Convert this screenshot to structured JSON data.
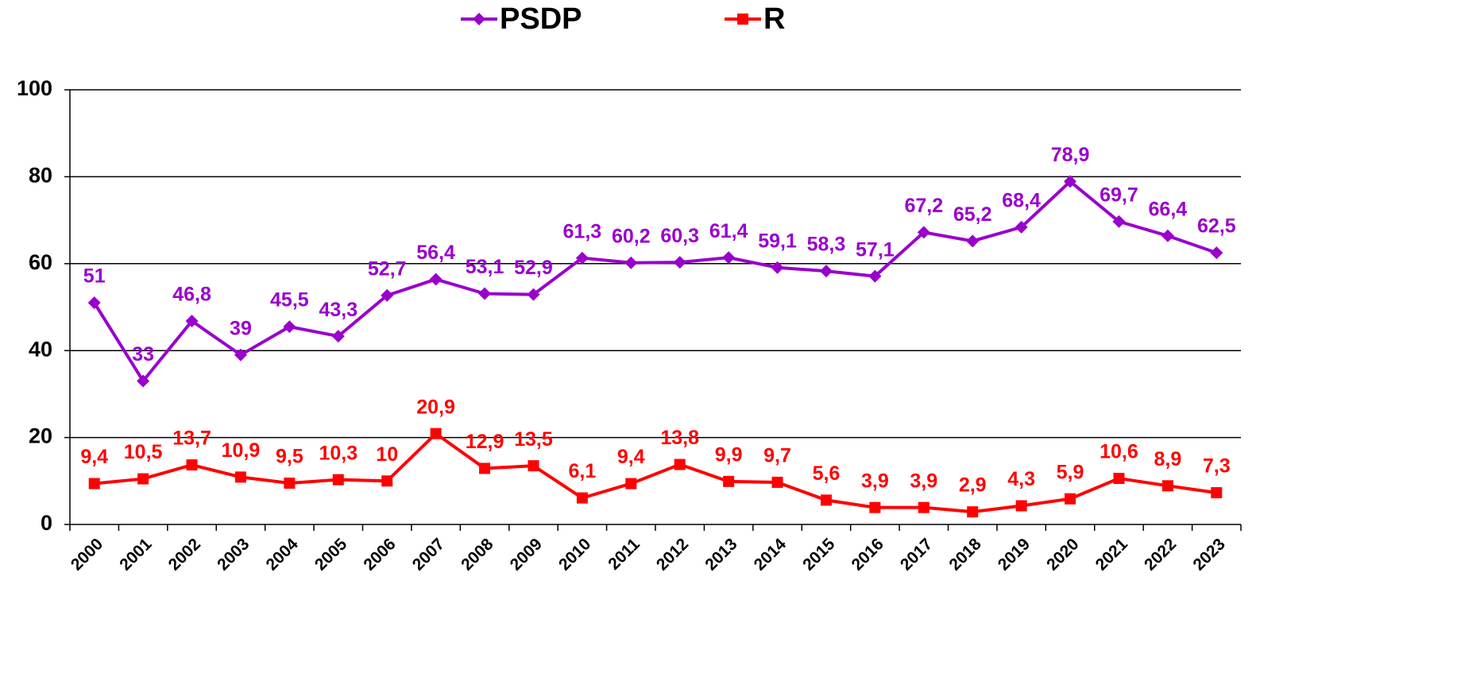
{
  "chart_data": {
    "type": "line",
    "categories": [
      "2000",
      "2001",
      "2002",
      "2003",
      "2004",
      "2005",
      "2006",
      "2007",
      "2008",
      "2009",
      "2010",
      "2011",
      "2012",
      "2013",
      "2014",
      "2015",
      "2016",
      "2017",
      "2018",
      "2019",
      "2020",
      "2021",
      "2022",
      "2023"
    ],
    "series": [
      {
        "name": "PSDP",
        "color": "#9900cc",
        "marker": "diamond",
        "values": [
          51,
          33,
          46.8,
          39,
          45.5,
          43.3,
          52.7,
          56.4,
          53.1,
          52.9,
          61.3,
          60.2,
          60.3,
          61.4,
          59.1,
          58.3,
          57.1,
          67.2,
          65.2,
          68.4,
          78.9,
          69.7,
          66.4,
          62.5
        ],
        "value_labels": [
          "51",
          "33",
          "46,8",
          "39",
          "45,5",
          "43,3",
          "52,7",
          "56,4",
          "53,1",
          "52,9",
          "61,3",
          "60,2",
          "60,3",
          "61,4",
          "59,1",
          "58,3",
          "57,1",
          "67,2",
          "65,2",
          "68,4",
          "78,9",
          "69,7",
          "66,4",
          "62,5"
        ]
      },
      {
        "name": "R",
        "color": "#ff0000",
        "marker": "square",
        "values": [
          9.4,
          10.5,
          13.7,
          10.9,
          9.5,
          10.3,
          10,
          20.9,
          12.9,
          13.5,
          6.1,
          9.4,
          13.8,
          9.9,
          9.7,
          5.6,
          3.9,
          3.9,
          2.9,
          4.3,
          5.9,
          10.6,
          8.9,
          7.3
        ],
        "value_labels": [
          "9,4",
          "10,5",
          "13,7",
          "10,9",
          "9,5",
          "10,3",
          "10",
          "20,9",
          "12,9",
          "13,5",
          "6,1",
          "9,4",
          "13,8",
          "9,9",
          "9,7",
          "5,6",
          "3,9",
          "3,9",
          "2,9",
          "4,3",
          "5,9",
          "10,6",
          "8,9",
          "7,3"
        ]
      }
    ],
    "ylim": [
      0,
      100
    ],
    "yticks": [
      0,
      20,
      40,
      60,
      80,
      100
    ],
    "grid": true,
    "legend": "top"
  }
}
